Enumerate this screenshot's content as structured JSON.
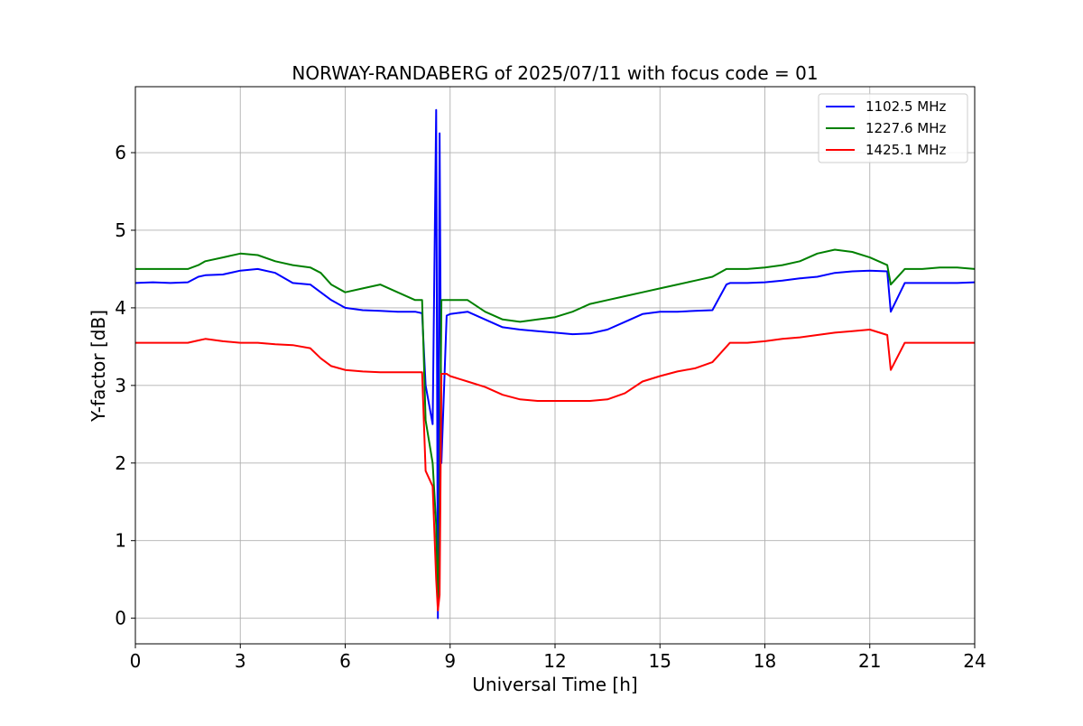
{
  "chart_data": {
    "type": "line",
    "title": "NORWAY-RANDABERG of 2025/07/11 with focus code = 01",
    "xlabel": "Universal Time [h]",
    "ylabel": "Y-factor [dB]",
    "xlim": [
      0,
      24
    ],
    "ylim": [
      -0.33,
      6.85
    ],
    "x_ticks": [
      0,
      3,
      6,
      9,
      12,
      15,
      18,
      21,
      24
    ],
    "y_ticks": [
      0,
      1,
      2,
      3,
      4,
      5,
      6
    ],
    "grid": true,
    "legend_position": "top-right",
    "series": [
      {
        "name": "1102.5 MHz",
        "color": "#0000ff",
        "x": [
          0,
          0.5,
          1.0,
          1.5,
          1.8,
          2.0,
          2.5,
          3.0,
          3.5,
          4.0,
          4.5,
          5.0,
          5.3,
          5.6,
          6.0,
          6.5,
          7.0,
          7.5,
          8.0,
          8.2,
          8.3,
          8.5,
          8.6,
          8.65,
          8.7,
          8.75,
          8.9,
          9.0,
          9.5,
          10.0,
          10.5,
          11.0,
          11.5,
          12.0,
          12.5,
          13.0,
          13.5,
          14.0,
          14.5,
          15.0,
          15.5,
          16.0,
          16.5,
          16.9,
          17.0,
          17.5,
          18.0,
          18.5,
          19.0,
          19.5,
          20.0,
          20.5,
          21.0,
          21.5,
          21.6,
          22.0,
          22.5,
          23.0,
          23.5,
          24.0
        ],
        "values": [
          4.32,
          4.33,
          4.32,
          4.33,
          4.4,
          4.42,
          4.43,
          4.48,
          4.5,
          4.45,
          4.32,
          4.3,
          4.2,
          4.1,
          4.0,
          3.97,
          3.96,
          3.95,
          3.95,
          3.93,
          3.0,
          2.5,
          6.55,
          0.0,
          6.25,
          2.0,
          3.9,
          3.92,
          3.95,
          3.85,
          3.75,
          3.72,
          3.7,
          3.68,
          3.66,
          3.67,
          3.72,
          3.82,
          3.92,
          3.95,
          3.95,
          3.96,
          3.97,
          4.3,
          4.32,
          4.32,
          4.33,
          4.35,
          4.38,
          4.4,
          4.45,
          4.47,
          4.48,
          4.47,
          3.95,
          4.32,
          4.32,
          4.32,
          4.32,
          4.33
        ]
      },
      {
        "name": "1227.6 MHz",
        "color": "#008000",
        "x": [
          0,
          0.5,
          1.0,
          1.5,
          1.8,
          2.0,
          2.5,
          3.0,
          3.5,
          4.0,
          4.5,
          5.0,
          5.3,
          5.6,
          6.0,
          6.5,
          7.0,
          7.5,
          8.0,
          8.2,
          8.3,
          8.5,
          8.6,
          8.65,
          8.7,
          8.75,
          8.9,
          9.0,
          9.5,
          10.0,
          10.5,
          11.0,
          11.5,
          12.0,
          12.5,
          13.0,
          13.5,
          14.0,
          14.5,
          15.0,
          15.5,
          16.0,
          16.5,
          16.9,
          17.0,
          17.5,
          18.0,
          18.5,
          19.0,
          19.5,
          20.0,
          20.5,
          21.0,
          21.5,
          21.6,
          22.0,
          22.5,
          23.0,
          23.5,
          24.0
        ],
        "values": [
          4.5,
          4.5,
          4.5,
          4.5,
          4.55,
          4.6,
          4.65,
          4.7,
          4.68,
          4.6,
          4.55,
          4.52,
          4.45,
          4.3,
          4.2,
          4.25,
          4.3,
          4.2,
          4.1,
          4.1,
          2.55,
          2.0,
          1.2,
          0.15,
          1.3,
          4.1,
          4.1,
          4.1,
          4.1,
          3.95,
          3.85,
          3.82,
          3.85,
          3.88,
          3.95,
          4.05,
          4.1,
          4.15,
          4.2,
          4.25,
          4.3,
          4.35,
          4.4,
          4.5,
          4.5,
          4.5,
          4.52,
          4.55,
          4.6,
          4.7,
          4.75,
          4.72,
          4.65,
          4.55,
          4.3,
          4.5,
          4.5,
          4.52,
          4.52,
          4.5
        ]
      },
      {
        "name": "1425.1 MHz",
        "color": "#ff0000",
        "x": [
          0,
          0.5,
          1.0,
          1.5,
          1.8,
          2.0,
          2.5,
          3.0,
          3.5,
          4.0,
          4.5,
          5.0,
          5.3,
          5.6,
          6.0,
          6.5,
          7.0,
          7.5,
          8.0,
          8.2,
          8.3,
          8.5,
          8.6,
          8.65,
          8.7,
          8.75,
          8.9,
          9.0,
          9.5,
          10.0,
          10.5,
          11.0,
          11.5,
          12.0,
          12.5,
          13.0,
          13.5,
          14.0,
          14.5,
          15.0,
          15.5,
          16.0,
          16.5,
          16.9,
          17.0,
          17.5,
          18.0,
          18.5,
          19.0,
          19.5,
          20.0,
          20.5,
          21.0,
          21.5,
          21.6,
          22.0,
          22.5,
          23.0,
          23.5,
          24.0
        ],
        "values": [
          3.55,
          3.55,
          3.55,
          3.55,
          3.58,
          3.6,
          3.57,
          3.55,
          3.55,
          3.53,
          3.52,
          3.48,
          3.35,
          3.25,
          3.2,
          3.18,
          3.17,
          3.17,
          3.17,
          3.17,
          1.9,
          1.7,
          0.5,
          0.1,
          0.3,
          3.15,
          3.15,
          3.12,
          3.05,
          2.98,
          2.88,
          2.82,
          2.8,
          2.8,
          2.8,
          2.8,
          2.82,
          2.9,
          3.05,
          3.12,
          3.18,
          3.22,
          3.3,
          3.5,
          3.55,
          3.55,
          3.57,
          3.6,
          3.62,
          3.65,
          3.68,
          3.7,
          3.72,
          3.65,
          3.2,
          3.55,
          3.55,
          3.55,
          3.55,
          3.55
        ]
      }
    ]
  }
}
